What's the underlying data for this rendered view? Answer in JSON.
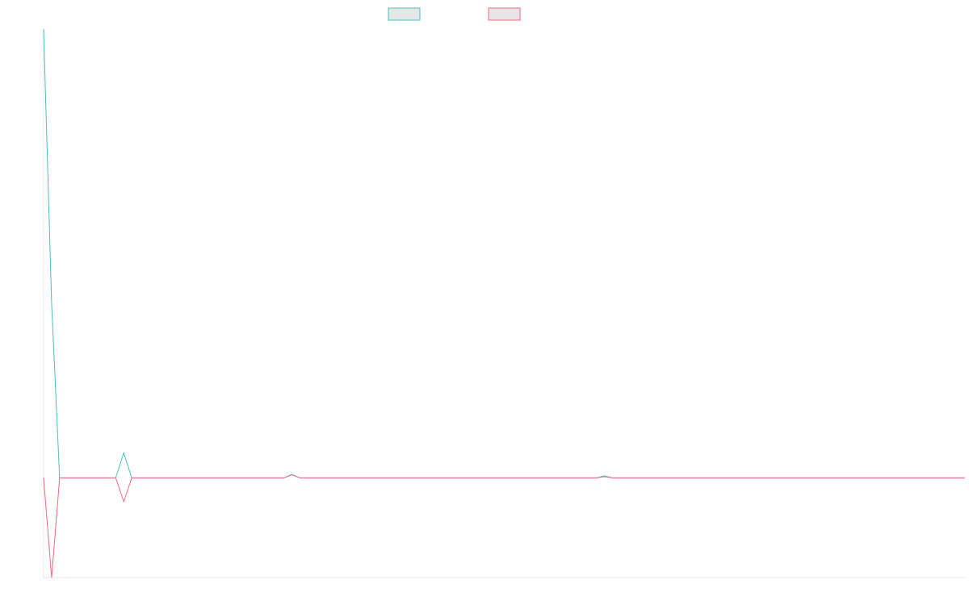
{
  "chart_data": {
    "type": "line",
    "title": "",
    "xlabel": "",
    "ylabel": "",
    "legend_position": "top-center",
    "grid": false,
    "x_count": 116,
    "ylim": [
      -4,
      18
    ],
    "series": [
      {
        "color": "#4bc0c0",
        "legend_fill": "#e6e6e6",
        "values": {
          "0": 18.0,
          "1": 7.0,
          "2": 0.0,
          "3": 0.0,
          "4": 0.0,
          "5": 0.0,
          "6": 0.0,
          "7": 0.0,
          "8": 0.0,
          "9": 0.0,
          "10": 1.0,
          "11": 0.0,
          "30": 0.0,
          "31": 0.14,
          "32": 0.0,
          "69": 0.0,
          "70": 0.08,
          "71": 0.0,
          "115": 0.0
        }
      },
      {
        "color": "#ff6384",
        "legend_fill": "#e6e6e6",
        "values": {
          "0": 0.0,
          "1": -4.0,
          "2": 0.0,
          "3": 0.0,
          "4": 0.0,
          "5": 0.0,
          "6": 0.0,
          "7": 0.0,
          "8": 0.0,
          "9": 0.0,
          "10": -0.95,
          "11": 0.0,
          "30": 0.0,
          "31": 0.12,
          "32": 0.0,
          "69": 0.0,
          "70": 0.05,
          "71": 0.0,
          "115": 0.0
        }
      }
    ]
  }
}
